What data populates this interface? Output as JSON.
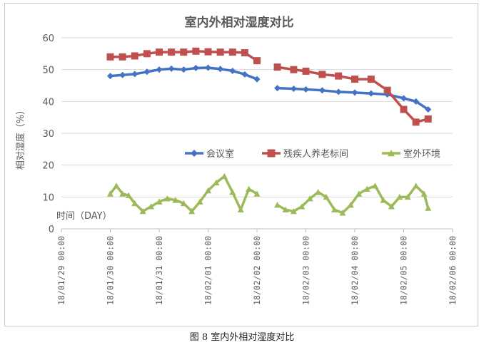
{
  "caption": "图 8 室内外相对湿度对比",
  "chart_data": {
    "type": "line",
    "title": "室内外相对湿度对比",
    "ylabel": "相对湿度（%）",
    "xlabel": "时间（DAY）",
    "ylim": [
      0,
      60
    ],
    "yticks": [
      0,
      10,
      20,
      30,
      40,
      50,
      60
    ],
    "x_range": [
      "18/01/29 00:00",
      "18/02/06 00:00"
    ],
    "x_tick_labels": [
      "18/01/29 00:00",
      "18/01/30 00:00",
      "18/01/31 00:00",
      "18/02/01 00:00",
      "18/02/02 00:00",
      "18/02/03 00:00",
      "18/02/04 00:00",
      "18/02/05 00:00",
      "18/02/06 00:00"
    ],
    "grid": "horizontal",
    "legend_placement": "middle-right",
    "series": [
      {
        "name": "会议室",
        "color": "#4472c4",
        "marker": "diamond",
        "segments": [
          [
            [
              "18/01/30 00:00",
              48.0
            ],
            [
              "18/01/30 06:00",
              48.3
            ],
            [
              "18/01/30 12:00",
              48.6
            ],
            [
              "18/01/30 18:00",
              49.3
            ],
            [
              "18/01/31 00:00",
              50.0
            ],
            [
              "18/01/31 06:00",
              50.3
            ],
            [
              "18/01/31 12:00",
              50.0
            ],
            [
              "18/01/31 18:00",
              50.5
            ],
            [
              "18/02/01 00:00",
              50.6
            ],
            [
              "18/02/01 06:00",
              50.2
            ],
            [
              "18/02/01 12:00",
              49.6
            ],
            [
              "18/02/01 18:00",
              48.5
            ],
            [
              "18/02/02 00:00",
              47.0
            ]
          ],
          [
            [
              "18/02/02 10:00",
              44.2
            ],
            [
              "18/02/02 18:00",
              44.0
            ],
            [
              "18/02/03 00:00",
              43.8
            ],
            [
              "18/02/03 08:00",
              43.5
            ],
            [
              "18/02/03 16:00",
              43.0
            ],
            [
              "18/02/04 00:00",
              42.8
            ],
            [
              "18/02/04 08:00",
              42.5
            ],
            [
              "18/02/04 16:00",
              42.2
            ],
            [
              "18/02/05 00:00",
              41.0
            ],
            [
              "18/02/05 06:00",
              40.0
            ],
            [
              "18/02/05 12:00",
              37.5
            ]
          ]
        ]
      },
      {
        "name": "残疾人养老标间",
        "color": "#c0504d",
        "marker": "square",
        "segments": [
          [
            [
              "18/01/30 00:00",
              54.0
            ],
            [
              "18/01/30 06:00",
              54.0
            ],
            [
              "18/01/30 12:00",
              54.3
            ],
            [
              "18/01/30 18:00",
              55.0
            ],
            [
              "18/01/31 00:00",
              55.5
            ],
            [
              "18/01/31 06:00",
              55.5
            ],
            [
              "18/01/31 12:00",
              55.5
            ],
            [
              "18/01/31 18:00",
              55.8
            ],
            [
              "18/02/01 00:00",
              55.6
            ],
            [
              "18/02/01 06:00",
              55.5
            ],
            [
              "18/02/01 12:00",
              55.5
            ],
            [
              "18/02/01 18:00",
              55.3
            ],
            [
              "18/02/02 00:00",
              52.8
            ]
          ],
          [
            [
              "18/02/02 10:00",
              50.8
            ],
            [
              "18/02/02 18:00",
              50.0
            ],
            [
              "18/02/03 00:00",
              49.5
            ],
            [
              "18/02/03 08:00",
              48.5
            ],
            [
              "18/02/03 16:00",
              48.0
            ],
            [
              "18/02/04 00:00",
              47.0
            ],
            [
              "18/02/04 08:00",
              47.0
            ],
            [
              "18/02/04 16:00",
              43.5
            ],
            [
              "18/02/05 00:00",
              37.5
            ],
            [
              "18/02/05 06:00",
              33.5
            ],
            [
              "18/02/05 12:00",
              34.5
            ]
          ]
        ]
      },
      {
        "name": "室外环境",
        "color": "#9bbb59",
        "marker": "triangle",
        "segments": [
          [
            [
              "18/01/30 00:00",
              11.0
            ],
            [
              "18/01/30 03:00",
              13.5
            ],
            [
              "18/01/30 06:00",
              11.0
            ],
            [
              "18/01/30 09:00",
              10.5
            ],
            [
              "18/01/30 12:00",
              8.0
            ],
            [
              "18/01/30 16:00",
              5.5
            ],
            [
              "18/01/30 20:00",
              7.0
            ],
            [
              "18/01/31 00:00",
              8.5
            ],
            [
              "18/01/31 04:00",
              9.5
            ],
            [
              "18/01/31 08:00",
              9.0
            ],
            [
              "18/01/31 12:00",
              8.0
            ],
            [
              "18/01/31 16:00",
              5.5
            ],
            [
              "18/01/31 20:00",
              8.5
            ],
            [
              "18/02/01 00:00",
              12.0
            ],
            [
              "18/02/01 04:00",
              14.5
            ],
            [
              "18/02/01 08:00",
              16.5
            ],
            [
              "18/02/01 12:00",
              11.5
            ],
            [
              "18/02/01 16:00",
              6.0
            ],
            [
              "18/02/01 20:00",
              12.5
            ],
            [
              "18/02/02 00:00",
              11.0
            ]
          ],
          [
            [
              "18/02/02 10:00",
              7.5
            ],
            [
              "18/02/02 14:00",
              6.0
            ],
            [
              "18/02/02 18:00",
              5.5
            ],
            [
              "18/02/02 22:00",
              7.0
            ],
            [
              "18/02/03 02:00",
              9.5
            ],
            [
              "18/02/03 06:00",
              11.5
            ],
            [
              "18/02/03 10:00",
              10.0
            ],
            [
              "18/02/03 14:00",
              6.0
            ],
            [
              "18/02/03 18:00",
              5.0
            ],
            [
              "18/02/03 22:00",
              7.5
            ],
            [
              "18/02/04 02:00",
              11.0
            ],
            [
              "18/02/04 06:00",
              12.5
            ],
            [
              "18/02/04 10:00",
              13.5
            ],
            [
              "18/02/04 14:00",
              9.0
            ],
            [
              "18/02/04 18:00",
              7.0
            ],
            [
              "18/02/04 22:00",
              10.0
            ],
            [
              "18/02/05 02:00",
              10.0
            ],
            [
              "18/02/05 06:00",
              13.5
            ],
            [
              "18/02/05 10:00",
              11.0
            ],
            [
              "18/02/05 12:00",
              6.5
            ]
          ]
        ]
      }
    ]
  }
}
